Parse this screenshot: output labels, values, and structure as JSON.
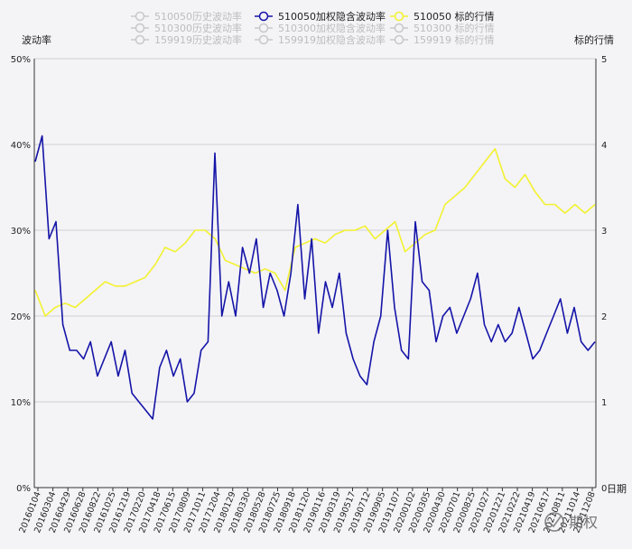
{
  "chart_data": {
    "type": "line",
    "legend": [
      {
        "name": "510050历史波动率",
        "color": "#c8c8c8",
        "active": false
      },
      {
        "name": "510300历史波动率",
        "color": "#c8c8c8",
        "active": false
      },
      {
        "name": "159919历史波动率",
        "color": "#c8c8c8",
        "active": false
      },
      {
        "name": "510050加权隐含波动率",
        "color": "#1414a8",
        "active": true
      },
      {
        "name": "510300加权隐含波动率",
        "color": "#c8c8c8",
        "active": false
      },
      {
        "name": "159919加权隐含波动率",
        "color": "#c8c8c8",
        "active": false
      },
      {
        "name": "510050 标的行情",
        "color": "#f2f230",
        "active": true
      },
      {
        "name": "510300 标的行情",
        "color": "#c8c8c8",
        "active": false
      },
      {
        "name": "159919 标的行情",
        "color": "#c8c8c8",
        "active": false
      }
    ],
    "y_left": {
      "title": "波动率",
      "ticks": [
        "0%",
        "10%",
        "20%",
        "30%",
        "40%",
        "50%"
      ],
      "range": [
        0,
        50
      ]
    },
    "y_right": {
      "title": "标的行情",
      "ticks": [
        "0",
        "1",
        "2",
        "3",
        "4",
        "5"
      ],
      "range": [
        0,
        5
      ]
    },
    "x_axis": {
      "title": "日期",
      "categories": [
        "20160104",
        "20160304",
        "20160429",
        "20160628",
        "20160822",
        "20161025",
        "20161219",
        "20170220",
        "20170418",
        "20170615",
        "20170809",
        "20171011",
        "20171204",
        "20180129",
        "20180330",
        "20180528",
        "20180725",
        "20180918",
        "20181120",
        "20190116",
        "20190319",
        "20190517",
        "20190712",
        "20190905",
        "20191107",
        "20200102",
        "20200305",
        "20200430",
        "20200701",
        "20200825",
        "20201027",
        "20201221",
        "20210222",
        "20210419",
        "20210617",
        "20210811",
        "20211014",
        "20211208"
      ]
    },
    "series": [
      {
        "name": "510050加权隐含波动率",
        "color": "#1414a8",
        "values": [
          38,
          41,
          29,
          31,
          19,
          16,
          16,
          15,
          17,
          13,
          15,
          17,
          13,
          16,
          11,
          10,
          9,
          8,
          14,
          16,
          13,
          15,
          10,
          11,
          16,
          17,
          39,
          20,
          24,
          20,
          28,
          25,
          29,
          21,
          25,
          23,
          20,
          25,
          33,
          22,
          29,
          18,
          24,
          21,
          25,
          18,
          15,
          13,
          12,
          17,
          20,
          30,
          21,
          16,
          15,
          31,
          24,
          23,
          17,
          20,
          21,
          18,
          20,
          22,
          25,
          19,
          17,
          19,
          17,
          18,
          21,
          18,
          15,
          16,
          18,
          20,
          22,
          18,
          21,
          17,
          16,
          17
        ]
      },
      {
        "name": "510050 标的行情",
        "color": "#f2f230",
        "values": [
          2.3,
          2.0,
          2.1,
          2.15,
          2.1,
          2.2,
          2.3,
          2.4,
          2.35,
          2.35,
          2.4,
          2.45,
          2.6,
          2.8,
          2.75,
          2.85,
          3.0,
          3.0,
          2.9,
          2.65,
          2.6,
          2.55,
          2.5,
          2.55,
          2.5,
          2.3,
          2.8,
          2.85,
          2.9,
          2.85,
          2.95,
          3.0,
          3.0,
          3.05,
          2.9,
          3.0,
          3.1,
          2.75,
          2.85,
          2.95,
          3.0,
          3.3,
          3.4,
          3.5,
          3.65,
          3.8,
          3.95,
          3.6,
          3.5,
          3.65,
          3.45,
          3.3,
          3.3,
          3.2,
          3.3,
          3.2,
          3.3
        ]
      }
    ],
    "watermark": "期权"
  }
}
